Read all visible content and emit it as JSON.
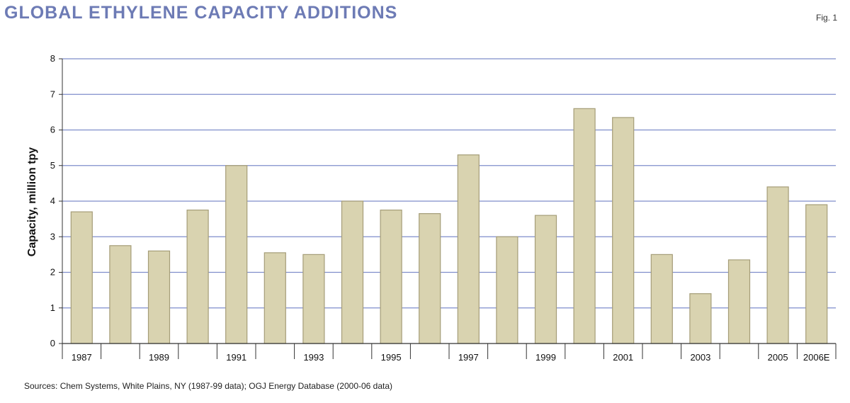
{
  "header": {
    "title": "Global ethylene capacity additions",
    "fig_label": "Fig. 1"
  },
  "footer": {
    "source": "Sources: Chem Systems, White Plains, NY (1987-99 data); OGJ Energy Database (2000-06 data)"
  },
  "colors": {
    "bar_fill": "#d9d3b0",
    "bar_edge": "#a59d78",
    "grid": "#7f8ecb",
    "title": "#6d7bb5"
  },
  "chart_data": {
    "type": "bar",
    "title": "Global ethylene capacity additions",
    "ylabel": "Capacity, million tpy",
    "xlabel": "",
    "ylim": [
      0,
      8
    ],
    "yticks": [
      0,
      1,
      2,
      3,
      4,
      5,
      6,
      7,
      8
    ],
    "grid": true,
    "categories": [
      "1987",
      "1988",
      "1989",
      "1990",
      "1991",
      "1992",
      "1993",
      "1994",
      "1995",
      "1996",
      "1997",
      "1998",
      "1999",
      "2000",
      "2001",
      "2002",
      "2003",
      "2004",
      "2005",
      "2006E"
    ],
    "xtick_labels": [
      "1987",
      "",
      "1989",
      "",
      "1991",
      "",
      "1993",
      "",
      "1995",
      "",
      "1997",
      "",
      "1999",
      "",
      "2001",
      "",
      "2003",
      "",
      "2005",
      "2006E"
    ],
    "values": [
      3.7,
      2.75,
      2.6,
      3.75,
      5.0,
      2.55,
      2.5,
      4.0,
      3.75,
      3.65,
      5.3,
      3.0,
      3.6,
      6.6,
      6.35,
      2.5,
      1.4,
      2.35,
      4.4,
      3.9
    ]
  }
}
